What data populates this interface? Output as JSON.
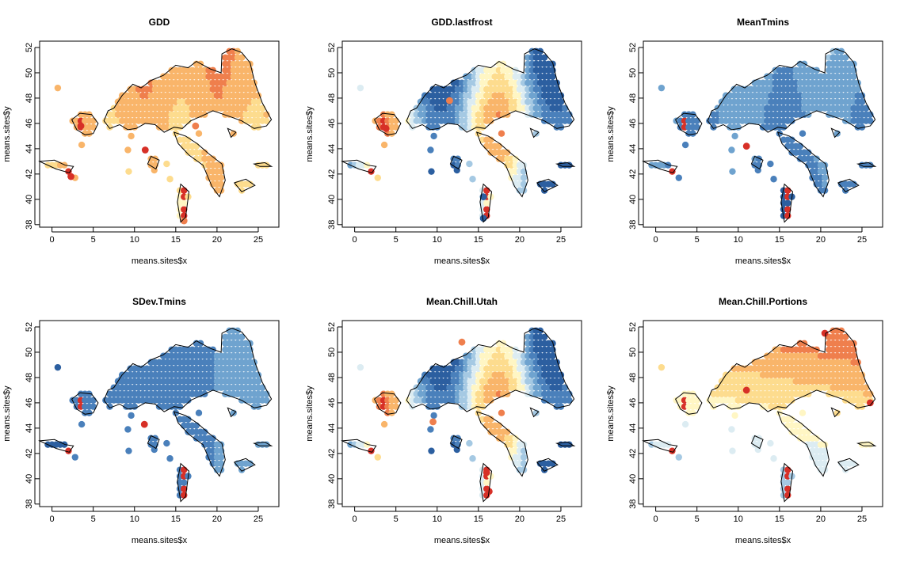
{
  "figure": {
    "background": "#ffffff",
    "palette": [
      "#2c5fa0",
      "#4a80bb",
      "#6fa3cf",
      "#a5c9e3",
      "#dcecf2",
      "#fff6c4",
      "#fddc8e",
      "#f9b56a",
      "#ef7f4d",
      "#d73027"
    ]
  },
  "chart_data": [
    {
      "type": "scatter",
      "title": "GDD",
      "xlabel": "means.sites$x",
      "ylabel": "means.sites$y",
      "xlim": [
        -1.5,
        27.5
      ],
      "ylim": [
        37.8,
        52.5
      ],
      "xticks": [
        "0",
        "5",
        "10",
        "15",
        "20",
        "25"
      ],
      "yticks": [
        "38",
        "40",
        "42",
        "44",
        "46",
        "48",
        "50",
        "52"
      ],
      "color_gradient": "warm",
      "emphasis": [
        [
          2.3,
          41.8,
          "hi"
        ],
        [
          11.3,
          43.9,
          "hi"
        ],
        [
          3.5,
          45.8,
          "hi"
        ],
        [
          17.4,
          45.8,
          "mid"
        ],
        [
          16.0,
          38.3,
          "mid"
        ]
      ]
    },
    {
      "type": "scatter",
      "title": "GDD.lastfrost",
      "xlabel": "means.sites$x",
      "ylabel": "means.sites$y",
      "xlim": [
        -1.5,
        27.5
      ],
      "ylim": [
        37.8,
        52.5
      ],
      "xticks": [
        "0",
        "5",
        "10",
        "15",
        "20",
        "25"
      ],
      "yticks": [
        "38",
        "40",
        "42",
        "44",
        "46",
        "48",
        "50",
        "52"
      ],
      "color_gradient": "mixed",
      "emphasis": [
        [
          15.6,
          38.5,
          "lo"
        ],
        [
          15.6,
          40.2,
          "lo"
        ],
        [
          3.8,
          45.6,
          "hi"
        ],
        [
          11.5,
          47.8,
          "mid"
        ]
      ]
    },
    {
      "type": "scatter",
      "title": "MeanTmins",
      "xlabel": "means.sites$x",
      "ylabel": "means.sites$y",
      "xlim": [
        -1.5,
        27.5
      ],
      "ylim": [
        37.8,
        52.5
      ],
      "xticks": [
        "0",
        "5",
        "10",
        "15",
        "20",
        "25"
      ],
      "yticks": [
        "38",
        "40",
        "42",
        "44",
        "46",
        "48",
        "50",
        "52"
      ],
      "color_gradient": "cool",
      "emphasis": [
        [
          11.0,
          44.2,
          "hi"
        ]
      ]
    },
    {
      "type": "scatter",
      "title": "SDev.Tmins",
      "xlabel": "means.sites$x",
      "ylabel": "means.sites$y",
      "xlim": [
        -1.5,
        27.5
      ],
      "ylim": [
        37.8,
        52.5
      ],
      "xticks": [
        "0",
        "5",
        "10",
        "15",
        "20",
        "25"
      ],
      "yticks": [
        "38",
        "40",
        "42",
        "44",
        "46",
        "48",
        "50",
        "52"
      ],
      "color_gradient": "coolest",
      "emphasis": [
        [
          11.2,
          44.3,
          "hi"
        ]
      ]
    },
    {
      "type": "scatter",
      "title": "Mean.Chill.Utah",
      "xlabel": "means.sites$x",
      "ylabel": "means.sites$y",
      "xlim": [
        -1.5,
        27.5
      ],
      "ylim": [
        37.8,
        52.5
      ],
      "xticks": [
        "0",
        "5",
        "10",
        "15",
        "20",
        "25"
      ],
      "yticks": [
        "38",
        "40",
        "42",
        "44",
        "46",
        "48",
        "50",
        "52"
      ],
      "color_gradient": "mixed",
      "emphasis": [
        [
          16.3,
          39.0,
          "hi"
        ],
        [
          16.0,
          40.5,
          "hi"
        ],
        [
          9.5,
          44.5,
          "mid"
        ],
        [
          13.0,
          50.8,
          "mid"
        ]
      ]
    },
    {
      "type": "scatter",
      "title": "Mean.Chill.Portions",
      "xlabel": "means.sites$x",
      "ylabel": "means.sites$y",
      "xlim": [
        -1.5,
        27.5
      ],
      "ylim": [
        37.8,
        52.5
      ],
      "xticks": [
        "0",
        "5",
        "10",
        "15",
        "20",
        "25"
      ],
      "yticks": [
        "38",
        "40",
        "42",
        "44",
        "46",
        "48",
        "50",
        "52"
      ],
      "color_gradient": "north-hot",
      "emphasis": [
        [
          20.5,
          51.5,
          "hi"
        ],
        [
          26.0,
          46.0,
          "hi"
        ],
        [
          11.0,
          47.0,
          "hi"
        ]
      ]
    }
  ]
}
